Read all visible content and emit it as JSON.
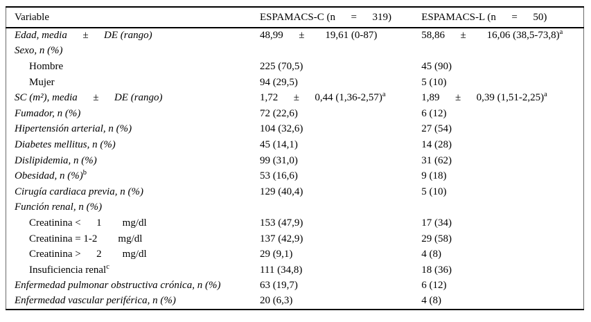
{
  "colors": {
    "background": "#ffffff",
    "text": "#000000",
    "rule_heavy": "#000000",
    "rule_light": "#6a6a6a"
  },
  "table": {
    "columns": [
      {
        "label": "Variable"
      },
      {
        "label": "ESPAMACS-C (n  =  319)"
      },
      {
        "label": "ESPAMACS-L (n  =  50)"
      }
    ],
    "rows": [
      {
        "label": "Edad, media  ±  DE (rango)",
        "italic": true,
        "indent": false,
        "values": [
          {
            "text": "48,99  ±  19,61 (0-87)"
          },
          {
            "text": "58,86  ±  16,06 (38,5-73,8)",
            "sup": "a"
          }
        ]
      },
      {
        "label": "Sexo, n (%)",
        "italic": true,
        "indent": false,
        "values": [
          {
            "text": ""
          },
          {
            "text": ""
          }
        ]
      },
      {
        "label": "Hombre",
        "italic": false,
        "indent": true,
        "values": [
          {
            "text": "225 (70,5)"
          },
          {
            "text": "45 (90)"
          }
        ]
      },
      {
        "label": "Mujer",
        "italic": false,
        "indent": true,
        "values": [
          {
            "text": "94 (29,5)"
          },
          {
            "text": "5 (10)"
          }
        ]
      },
      {
        "label": "SC (m²), media  ±  DE (rango)",
        "italic": true,
        "indent": false,
        "values": [
          {
            "text": "1,72  ±  0,44 (1,36-2,57)",
            "sup": "a"
          },
          {
            "text": "1,89  ±  0,39 (1,51-2,25)",
            "sup": "a"
          }
        ]
      },
      {
        "label": "Fumador, n (%)",
        "italic": true,
        "indent": false,
        "values": [
          {
            "text": "72 (22,6)"
          },
          {
            "text": "6 (12)"
          }
        ]
      },
      {
        "label": "Hipertensión arterial, n (%)",
        "italic": true,
        "indent": false,
        "values": [
          {
            "text": "104 (32,6)"
          },
          {
            "text": "27 (54)"
          }
        ]
      },
      {
        "label": "Diabetes mellitus, n (%)",
        "italic": true,
        "indent": false,
        "values": [
          {
            "text": "45 (14,1)"
          },
          {
            "text": "14 (28)"
          }
        ]
      },
      {
        "label": "Dislipidemia, n (%)",
        "italic": true,
        "indent": false,
        "values": [
          {
            "text": "99 (31,0)"
          },
          {
            "text": "31 (62)"
          }
        ]
      },
      {
        "label": "Obesidad, n (%)",
        "label_sup": "b",
        "italic": true,
        "indent": false,
        "values": [
          {
            "text": "53 (16,6)"
          },
          {
            "text": "9 (18)"
          }
        ]
      },
      {
        "label": "Cirugía cardiaca previa, n (%)",
        "italic": true,
        "indent": false,
        "values": [
          {
            "text": "129 (40,4)"
          },
          {
            "text": "5 (10)"
          }
        ]
      },
      {
        "label": "Función renal, n (%)",
        "italic": true,
        "indent": false,
        "values": [
          {
            "text": ""
          },
          {
            "text": ""
          }
        ]
      },
      {
        "label": "Creatinina <  1  mg/dl",
        "italic": false,
        "indent": true,
        "values": [
          {
            "text": "153 (47,9)"
          },
          {
            "text": "17 (34)"
          }
        ]
      },
      {
        "label": "Creatinina = 1-2  mg/dl",
        "italic": false,
        "indent": true,
        "values": [
          {
            "text": "137 (42,9)"
          },
          {
            "text": "29 (58)"
          }
        ]
      },
      {
        "label": "Creatinina >  2  mg/dl",
        "italic": false,
        "indent": true,
        "values": [
          {
            "text": "29 (9,1)"
          },
          {
            "text": "4 (8)"
          }
        ]
      },
      {
        "label": "Insuficiencia renal",
        "label_sup": "c",
        "italic": false,
        "indent": true,
        "values": [
          {
            "text": "111 (34,8)"
          },
          {
            "text": "18 (36)"
          }
        ]
      },
      {
        "label": "Enfermedad pulmonar obstructiva crónica, n (%)",
        "italic": true,
        "indent": false,
        "values": [
          {
            "text": "63 (19,7)"
          },
          {
            "text": "6 (12)"
          }
        ]
      },
      {
        "label": "Enfermedad vascular periférica, n (%)",
        "italic": true,
        "indent": false,
        "values": [
          {
            "text": "20 (6,3)"
          },
          {
            "text": "4 (8)"
          }
        ]
      }
    ]
  }
}
